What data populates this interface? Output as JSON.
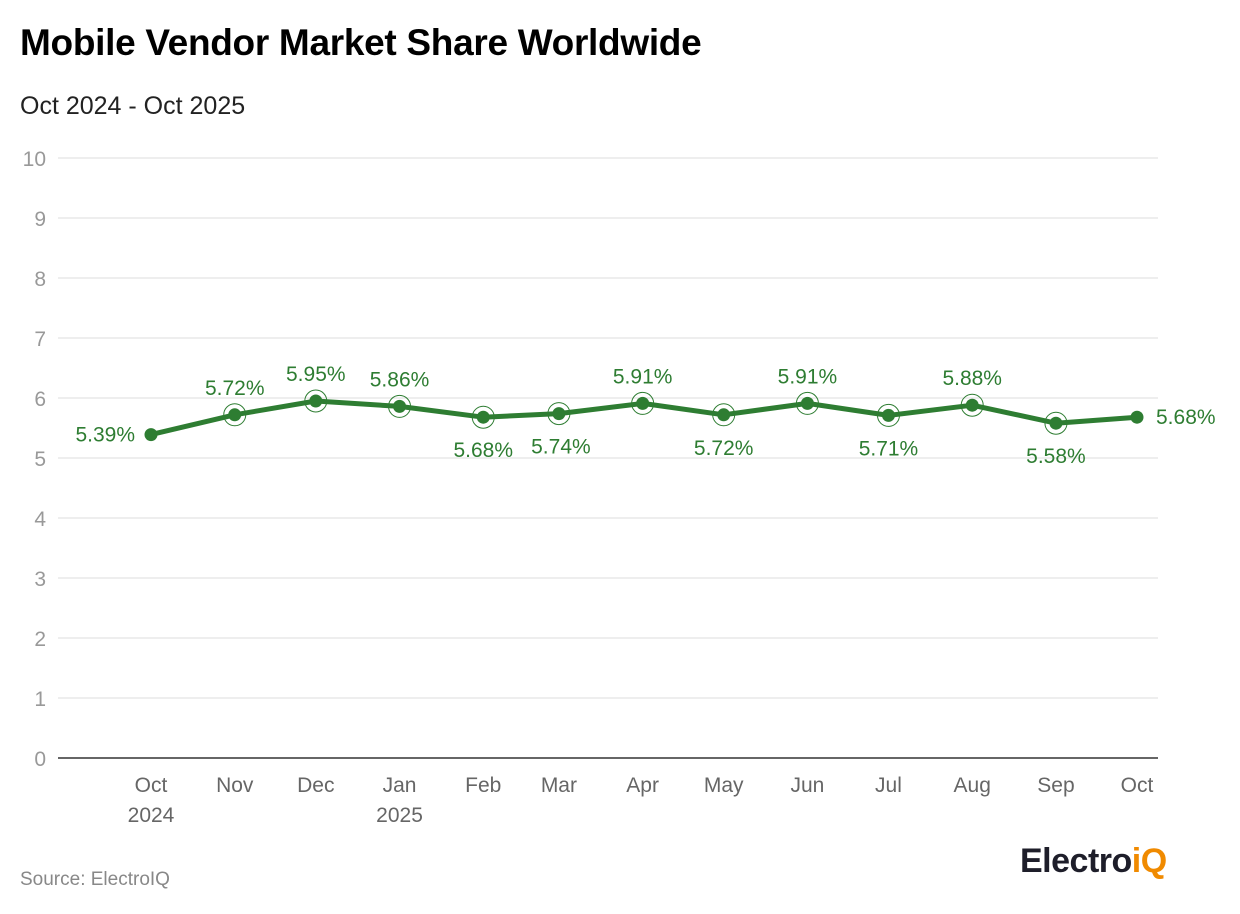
{
  "title": "Mobile Vendor Market Share Worldwide",
  "subtitle": "Oct 2024 - Oct 2025",
  "source": "Source: ElectroIQ",
  "logo": {
    "text_main": "Electro",
    "text_accent": "iQ"
  },
  "colors": {
    "series": "#2e7d32",
    "grid": "#dddddd",
    "axis": "#333333",
    "tick": "#999999",
    "logo_accent": "#f08a00"
  },
  "chart_data": {
    "type": "line",
    "title": "Mobile Vendor Market Share Worldwide",
    "subtitle": "Oct 2024 - Oct 2025",
    "xlabel": "",
    "ylabel": "",
    "ylim": [
      0,
      10
    ],
    "yticks": [
      "0",
      "1",
      "2",
      "3",
      "4",
      "5",
      "6",
      "7",
      "8",
      "9",
      "10"
    ],
    "grid": true,
    "legend": "none",
    "x": [
      "2024-10-01",
      "2024-11-01",
      "2024-12-01",
      "2025-01-01",
      "2025-02-01",
      "2025-03-01",
      "2025-04-01",
      "2025-05-01",
      "2025-06-01",
      "2025-07-01",
      "2025-08-01",
      "2025-09-01",
      "2025-10-01"
    ],
    "xtick_labels": [
      [
        "Oct",
        "2024"
      ],
      [
        "Nov",
        ""
      ],
      [
        "Dec",
        ""
      ],
      [
        "Jan",
        "2025"
      ],
      [
        "Feb",
        ""
      ],
      [
        "Mar",
        ""
      ],
      [
        "Apr",
        ""
      ],
      [
        "May",
        ""
      ],
      [
        "Jun",
        ""
      ],
      [
        "Jul",
        ""
      ],
      [
        "Aug",
        ""
      ],
      [
        "Sep",
        ""
      ],
      [
        "Oct",
        ""
      ]
    ],
    "values": [
      5.39,
      5.72,
      5.95,
      5.86,
      5.68,
      5.74,
      5.91,
      5.72,
      5.91,
      5.71,
      5.88,
      5.58,
      5.68
    ],
    "data_labels": [
      "5.39%",
      "5.72%",
      "5.95%",
      "5.86%",
      "5.68%",
      "5.74%",
      "5.91%",
      "5.72%",
      "5.91%",
      "5.71%",
      "5.88%",
      "5.58%",
      "5.68%"
    ]
  }
}
